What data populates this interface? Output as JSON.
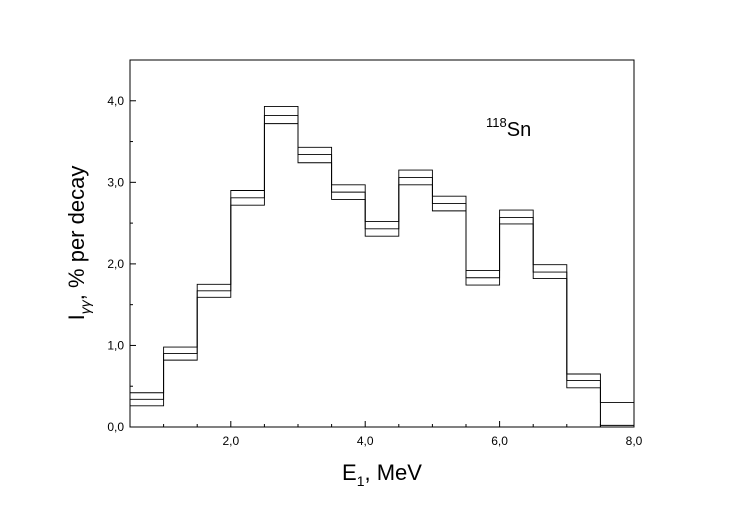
{
  "chart_data": {
    "type": "histogram",
    "annotation": {
      "superscript": "118",
      "text": "Sn"
    },
    "xlabel": {
      "main": "E",
      "sub": "1",
      "rest": ", MeV"
    },
    "ylabel": {
      "main": "I",
      "sub": "γγ",
      "rest": ", % per decay"
    },
    "xlim": [
      0.5,
      8.0
    ],
    "ylim": [
      0.0,
      4.5
    ],
    "x_ticks": [
      2.0,
      4.0,
      6.0,
      8.0
    ],
    "x_tick_labels": [
      "2,0",
      "4,0",
      "6,0",
      "8,0"
    ],
    "y_ticks": [
      0.0,
      1.0,
      2.0,
      3.0,
      4.0
    ],
    "y_tick_labels": [
      "0,0",
      "1,0",
      "2,0",
      "3,0",
      "4,0"
    ],
    "bin_edges": [
      0.5,
      1.0,
      1.5,
      2.0,
      2.5,
      3.0,
      3.5,
      4.0,
      4.5,
      5.0,
      5.5,
      6.0,
      6.5,
      7.0,
      7.5,
      8.0
    ],
    "series": [
      {
        "values": [
          0.42,
          0.98,
          1.75,
          2.9,
          3.93,
          3.43,
          2.97,
          2.52,
          3.15,
          2.83,
          1.92,
          2.66,
          1.99,
          0.65,
          0.3
        ]
      },
      {
        "values": [
          0.34,
          0.9,
          1.67,
          2.81,
          3.82,
          3.34,
          2.88,
          2.43,
          3.06,
          2.74,
          1.83,
          2.57,
          1.9,
          0.57,
          0.02
        ]
      },
      {
        "values": [
          0.26,
          0.82,
          1.59,
          2.72,
          3.72,
          3.24,
          2.79,
          2.34,
          2.97,
          2.65,
          1.74,
          2.49,
          1.82,
          0.48,
          0.0
        ]
      }
    ]
  }
}
